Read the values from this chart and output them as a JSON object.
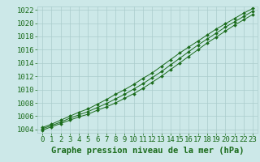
{
  "x": [
    0,
    1,
    2,
    3,
    4,
    5,
    6,
    7,
    8,
    9,
    10,
    11,
    12,
    13,
    14,
    15,
    16,
    17,
    18,
    19,
    20,
    21,
    22,
    23
  ],
  "y_main": [
    1004.1,
    1004.6,
    1005.1,
    1005.7,
    1006.2,
    1006.7,
    1007.3,
    1007.9,
    1008.6,
    1009.3,
    1010.1,
    1010.9,
    1011.8,
    1012.7,
    1013.7,
    1014.7,
    1015.7,
    1016.7,
    1017.6,
    1018.5,
    1019.4,
    1020.2,
    1021.0,
    1021.8
  ],
  "y_upper": [
    1004.3,
    1004.8,
    1005.4,
    1006.0,
    1006.6,
    1007.1,
    1007.8,
    1008.5,
    1009.3,
    1010.0,
    1010.8,
    1011.7,
    1012.5,
    1013.5,
    1014.5,
    1015.5,
    1016.4,
    1017.3,
    1018.2,
    1019.1,
    1019.9,
    1020.7,
    1021.5,
    1022.2
  ],
  "y_lower": [
    1003.9,
    1004.4,
    1004.9,
    1005.4,
    1005.9,
    1006.3,
    1006.9,
    1007.4,
    1008.0,
    1008.7,
    1009.4,
    1010.2,
    1011.1,
    1012.0,
    1013.0,
    1014.0,
    1015.0,
    1016.0,
    1017.0,
    1017.9,
    1018.8,
    1019.7,
    1020.5,
    1021.3
  ],
  "yticks": [
    1004,
    1006,
    1008,
    1010,
    1012,
    1014,
    1016,
    1018,
    1020,
    1022
  ],
  "xticks": [
    0,
    1,
    2,
    3,
    4,
    5,
    6,
    7,
    8,
    9,
    10,
    11,
    12,
    13,
    14,
    15,
    16,
    17,
    18,
    19,
    20,
    21,
    22,
    23
  ],
  "ylim": [
    1003.5,
    1022.5
  ],
  "xlim": [
    -0.5,
    23.5
  ],
  "line_color": "#1a6b1a",
  "marker_color": "#1a6b1a",
  "bg_color": "#cce8e8",
  "grid_color": "#aacccc",
  "xlabel": "Graphe pression niveau de la mer (hPa)",
  "tick_fontsize": 6.5,
  "label_fontsize": 7.5
}
